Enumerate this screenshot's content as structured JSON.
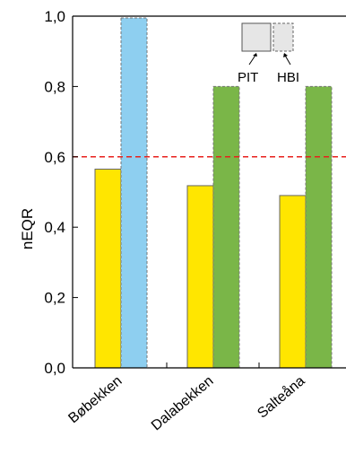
{
  "chart_data": {
    "type": "bar",
    "categories": [
      "Bøbekken",
      "Dalabekken",
      "Salteåna"
    ],
    "series": [
      {
        "name": "PIT",
        "values": [
          0.565,
          0.518,
          0.49
        ],
        "colors": [
          "#ffe600",
          "#ffe600",
          "#ffe600"
        ]
      },
      {
        "name": "HBI",
        "values": [
          0.995,
          0.8,
          0.8
        ],
        "colors": [
          "#8ecff0",
          "#7ab648",
          "#7ab648"
        ]
      }
    ],
    "xlabel": "",
    "ylabel": "nEQR",
    "ylim": [
      0,
      1
    ],
    "yticks": [
      "0,0",
      "0,2",
      "0,4",
      "0,6",
      "0,8",
      "1,0"
    ],
    "threshold": {
      "value": 0.6,
      "color": "#e8201c",
      "style": "dashed"
    },
    "grid": false,
    "legend": {
      "position": "top-right",
      "entries": [
        "PIT",
        "HBI"
      ]
    }
  }
}
